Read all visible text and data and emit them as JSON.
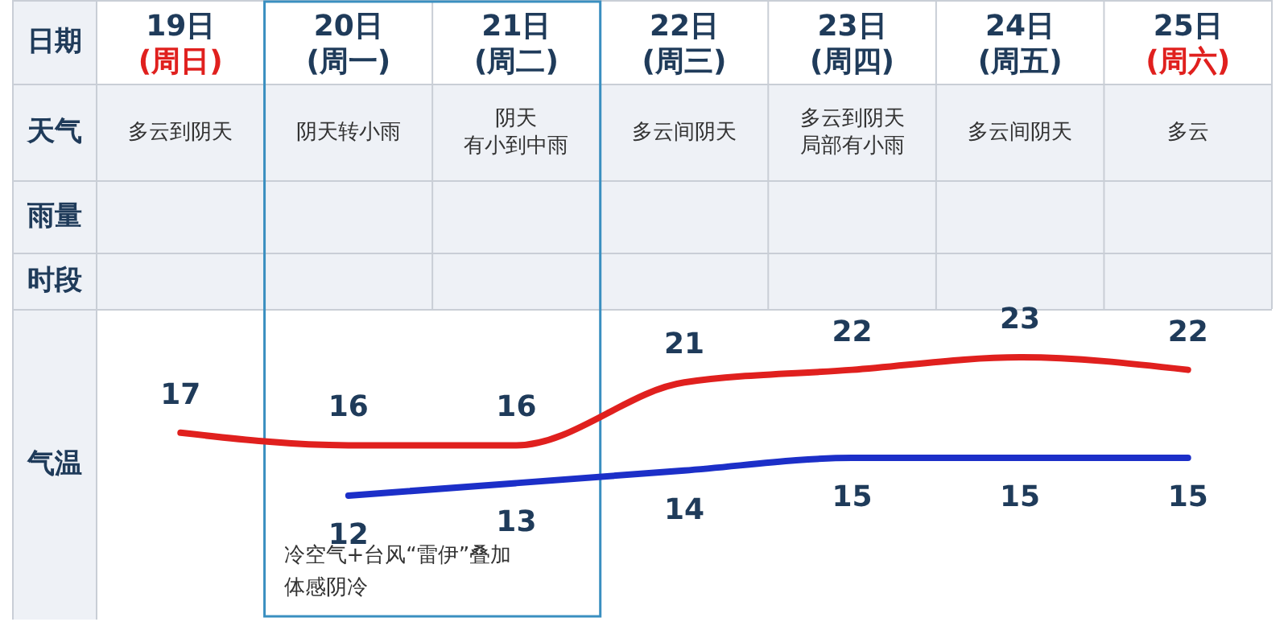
{
  "chart_data": {
    "type": "line",
    "xlabel": "日期",
    "ylabel": "气温",
    "categories": [
      "19日(周日)",
      "20日(周一)",
      "21日(周二)",
      "22日(周三)",
      "23日(周四)",
      "24日(周五)",
      "25日(周六)"
    ],
    "series": [
      {
        "color": "#e0201e",
        "values": [
          17,
          16,
          16,
          21,
          22,
          23,
          22
        ]
      },
      {
        "color": "#1c2fc8",
        "values": [
          null,
          12,
          13,
          14,
          15,
          15,
          15
        ]
      }
    ],
    "data_labels": true,
    "annotations": [
      "天气",
      "雨量",
      "时段",
      "多云到阴天",
      "阴天转小雨",
      "阴天有小到中雨",
      "多云间阴天",
      "多云到阴天局部有小雨",
      "多云间阴天",
      "多云",
      "冷空气+台风“雷伊”叠加体感阴冷"
    ]
  }
}
